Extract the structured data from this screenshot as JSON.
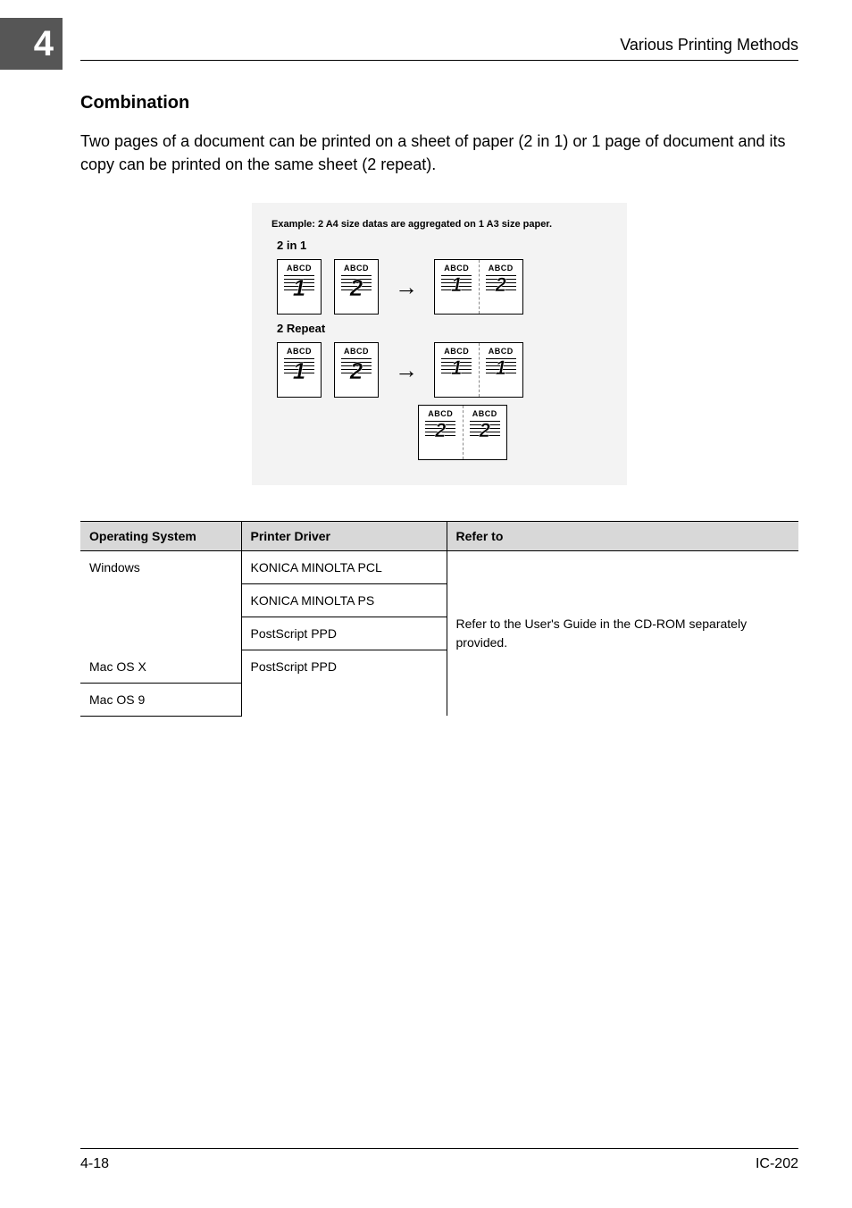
{
  "chapter_number": "4",
  "header_title": "Various Printing Methods",
  "section_title": "Combination",
  "body_text": "Two pages of a document can be printed on a sheet of paper (2 in 1) or 1 page of document and its copy can be printed on the same sheet (2 repeat).",
  "diagram": {
    "example_caption": "Example: 2 A4 size datas are aggregated on 1 A3 size paper.",
    "group1_label": "2 in 1",
    "group2_label": "2 Repeat",
    "abcd": "ABCD",
    "arrow": "→",
    "num1": "1",
    "num2": "2",
    "background_color": "#f3f3f3",
    "page_border_color": "#000000",
    "page_bg": "#ffffff"
  },
  "table": {
    "headers": {
      "c1": "Operating System",
      "c2": "Printer Driver",
      "c3": "Refer to"
    },
    "os_windows": "Windows",
    "os_macx": "Mac OS X",
    "os_mac9": "Mac OS 9",
    "drv_pcl": "KONICA MINOLTA PCL",
    "drv_ps": "KONICA MINOLTA PS",
    "drv_ppd": "PostScript PPD",
    "refer": "Refer to the User's Guide in the CD-ROM separately provided.",
    "header_bg": "#d8d8d8",
    "border_color": "#000000"
  },
  "footer": {
    "left": "4-18",
    "right": "IC-202"
  },
  "colors": {
    "tab_bg": "#565656",
    "tab_fg": "#ffffff",
    "page_bg": "#ffffff",
    "text": "#000000"
  }
}
